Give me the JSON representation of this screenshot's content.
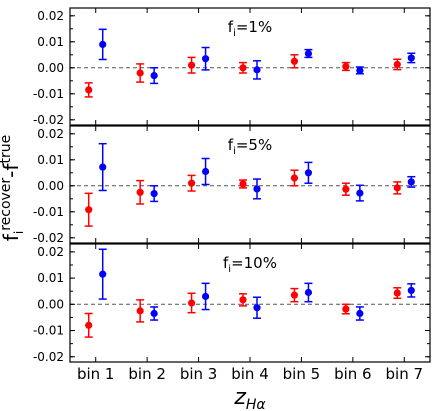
{
  "chart_data": {
    "type": "scatter",
    "subtype": "errorbar-panels",
    "categories": [
      "bin 1",
      "bin 2",
      "bin 3",
      "bin 4",
      "bin 5",
      "bin 6",
      "bin 7"
    ],
    "xlabel": {
      "base": "z",
      "sub": "Hα"
    },
    "ylabel": {
      "base": "f",
      "sub": "i",
      "sup1": "recover",
      "mid": "-f",
      "sup2": "true"
    },
    "ylim": [
      -0.022,
      0.023
    ],
    "yticks": [
      0.02,
      0.01,
      0.0,
      -0.01,
      -0.02
    ],
    "ytick_labels": [
      "0.02",
      "0.01",
      "0.00",
      "-0.01",
      "-0.02"
    ],
    "reference_line": {
      "y": 0,
      "style": "dashed"
    },
    "grid": false,
    "panels": [
      {
        "title": {
          "base": "f",
          "sub": "i",
          "rest": "=1%"
        },
        "series": [
          {
            "color": "#ff0000",
            "values": [
              -0.0085,
              -0.002,
              0.001,
              0.0,
              0.0025,
              0.0005,
              0.0013
            ],
            "err": [
              0.0027,
              0.0035,
              0.003,
              0.002,
              0.0025,
              0.0015,
              0.002
            ]
          },
          {
            "color": "#0000ff",
            "values": [
              0.009,
              -0.003,
              0.0035,
              -0.0008,
              0.0055,
              -0.001,
              0.0038
            ],
            "err": [
              0.0058,
              0.003,
              0.0043,
              0.0035,
              0.0015,
              0.0013,
              0.0018
            ]
          }
        ]
      },
      {
        "title": {
          "base": "f",
          "sub": "i",
          "rest": "=5%"
        },
        "series": [
          {
            "color": "#ff0000",
            "values": [
              -0.0092,
              -0.0025,
              0.001,
              0.0007,
              0.003,
              -0.0013,
              -0.0008
            ],
            "err": [
              0.0063,
              0.0045,
              0.003,
              0.0015,
              0.003,
              0.0023,
              0.0023
            ]
          },
          {
            "color": "#0000ff",
            "values": [
              0.0072,
              -0.003,
              0.0055,
              -0.0012,
              0.005,
              -0.0028,
              0.0015
            ],
            "err": [
              0.009,
              0.003,
              0.005,
              0.0038,
              0.004,
              0.003,
              0.002
            ]
          }
        ]
      },
      {
        "title": {
          "base": "f",
          "sub": "i",
          "rest": "=10%"
        },
        "series": [
          {
            "color": "#ff0000",
            "values": [
              -0.008,
              -0.0025,
              0.0005,
              0.0017,
              0.0035,
              -0.0018,
              0.0043
            ],
            "err": [
              0.0045,
              0.0042,
              0.0037,
              0.0023,
              0.0025,
              0.0018,
              0.002
            ]
          },
          {
            "color": "#0000ff",
            "values": [
              0.0115,
              -0.0035,
              0.003,
              -0.0013,
              0.0045,
              -0.0035,
              0.0053
            ],
            "err": [
              0.0095,
              0.0025,
              0.005,
              0.004,
              0.0035,
              0.0025,
              0.0025
            ]
          }
        ]
      }
    ]
  }
}
